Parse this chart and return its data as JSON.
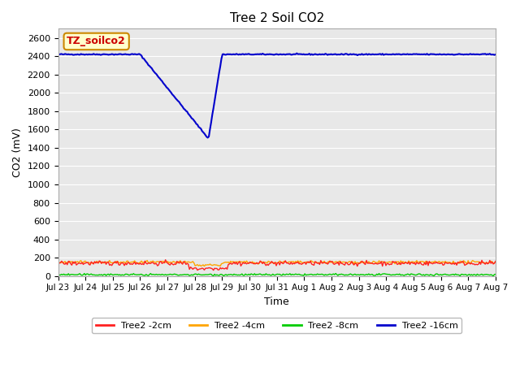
{
  "title": "Tree 2 Soil CO2",
  "ylabel": "CO2 (mV)",
  "xlabel": "Time",
  "ylim": [
    0,
    2700
  ],
  "yticks": [
    0,
    200,
    400,
    600,
    800,
    1000,
    1200,
    1400,
    1600,
    1800,
    2000,
    2200,
    2400,
    2600
  ],
  "xtick_labels": [
    "Jul 23",
    "Jul 24",
    "Jul 25",
    "Jul 26",
    "Jul 27",
    "Jul 28",
    "Jul 29",
    "Jul 30",
    "Jul 31",
    "Aug 1",
    "Aug 2",
    "Aug 3",
    "Aug 4",
    "Aug 5",
    "Aug 6",
    "Aug 7",
    "Aug 7"
  ],
  "n_days": 16,
  "bg_color": "#e8e8e8",
  "fig_bg": "#ffffff",
  "legend_label": "TZ_soilco2",
  "series": [
    {
      "label": "Tree2 -2cm",
      "color": "#ff2020"
    },
    {
      "label": "Tree2 -4cm",
      "color": "#ffa500"
    },
    {
      "label": "Tree2 -8cm",
      "color": "#00cc00"
    },
    {
      "label": "Tree2 -16cm",
      "color": "#0000cc"
    }
  ]
}
